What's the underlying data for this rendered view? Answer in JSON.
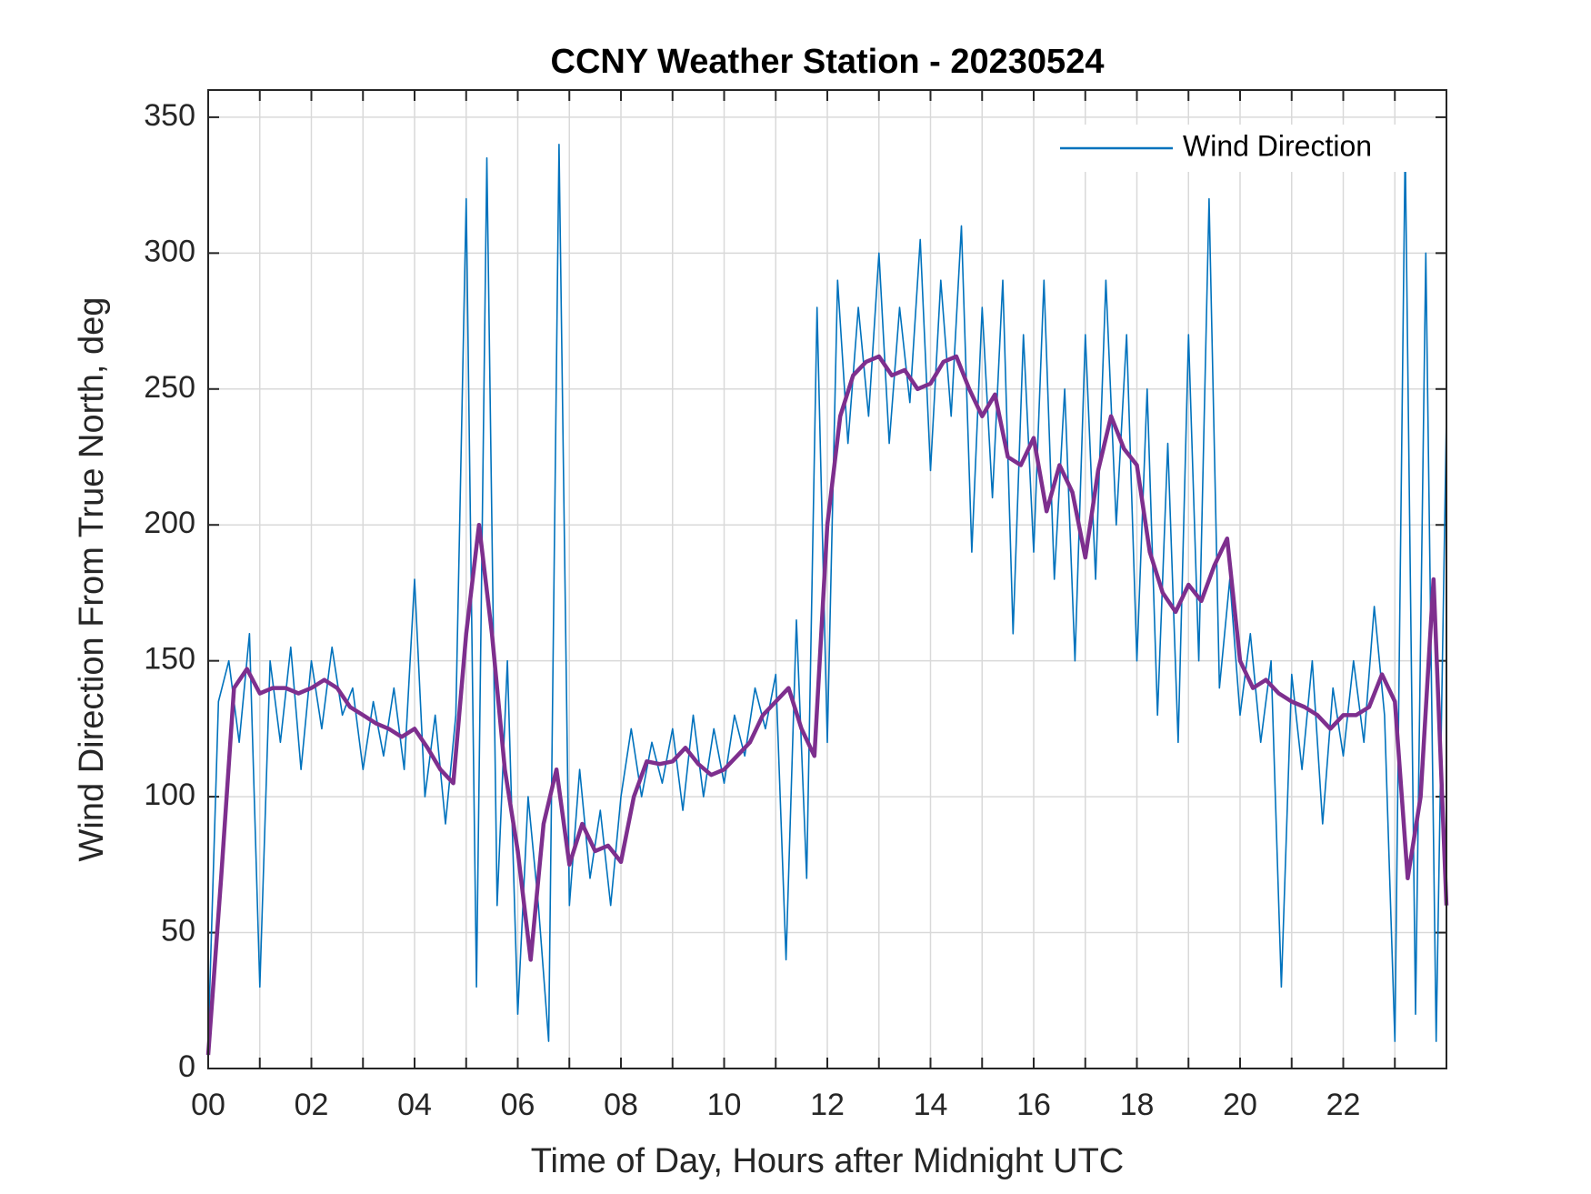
{
  "chart_data": {
    "type": "line",
    "title": "CCNY Weather Station - 20230524",
    "xlabel": "Time of Day, Hours after Midnight UTC",
    "ylabel": "Wind Direction From True North, deg",
    "xlim": [
      0,
      24
    ],
    "ylim": [
      0,
      360
    ],
    "xticks": [
      {
        "value": 0,
        "label": "00"
      },
      {
        "value": 2,
        "label": "02"
      },
      {
        "value": 4,
        "label": "04"
      },
      {
        "value": 6,
        "label": "06"
      },
      {
        "value": 8,
        "label": "08"
      },
      {
        "value": 10,
        "label": "10"
      },
      {
        "value": 12,
        "label": "12"
      },
      {
        "value": 14,
        "label": "14"
      },
      {
        "value": 16,
        "label": "16"
      },
      {
        "value": 18,
        "label": "18"
      },
      {
        "value": 20,
        "label": "20"
      },
      {
        "value": 22,
        "label": "22"
      }
    ],
    "xminorticks": [
      1,
      3,
      5,
      7,
      9,
      11,
      13,
      15,
      17,
      19,
      21,
      23
    ],
    "yticks": [
      0,
      50,
      100,
      150,
      200,
      250,
      300,
      350
    ],
    "grid": true,
    "legend": "upper right",
    "series": [
      {
        "name": "Wind Direction",
        "color": "#0072BD",
        "x": [
          0,
          0.2,
          0.4,
          0.6,
          0.8,
          1,
          1.2,
          1.4,
          1.6,
          1.8,
          2,
          2.2,
          2.4,
          2.6,
          2.8,
          3,
          3.2,
          3.4,
          3.6,
          3.8,
          4,
          4.2,
          4.4,
          4.6,
          4.8,
          5,
          5.2,
          5.4,
          5.6,
          5.8,
          6,
          6.2,
          6.4,
          6.6,
          6.8,
          7,
          7.2,
          7.4,
          7.6,
          7.8,
          8,
          8.2,
          8.4,
          8.6,
          8.8,
          9,
          9.2,
          9.4,
          9.6,
          9.8,
          10,
          10.2,
          10.4,
          10.6,
          10.8,
          11,
          11.2,
          11.4,
          11.6,
          11.8,
          12,
          12.2,
          12.4,
          12.6,
          12.8,
          13,
          13.2,
          13.4,
          13.6,
          13.8,
          14,
          14.2,
          14.4,
          14.6,
          14.8,
          15,
          15.2,
          15.4,
          15.6,
          15.8,
          16,
          16.2,
          16.4,
          16.6,
          16.8,
          17,
          17.2,
          17.4,
          17.6,
          17.8,
          18,
          18.2,
          18.4,
          18.6,
          18.8,
          19,
          19.2,
          19.4,
          19.6,
          19.8,
          20,
          20.2,
          20.4,
          20.6,
          20.8,
          21,
          21.2,
          21.4,
          21.6,
          21.8,
          22,
          22.2,
          22.4,
          22.6,
          22.8,
          23,
          23.2,
          23.4,
          23.6,
          23.8,
          24
        ],
        "values": [
          10,
          135,
          150,
          120,
          160,
          30,
          150,
          120,
          155,
          110,
          150,
          125,
          155,
          130,
          140,
          110,
          135,
          115,
          140,
          110,
          180,
          100,
          130,
          90,
          130,
          320,
          30,
          335,
          60,
          150,
          20,
          100,
          60,
          10,
          340,
          60,
          110,
          70,
          95,
          60,
          100,
          125,
          100,
          120,
          105,
          125,
          95,
          130,
          100,
          125,
          105,
          130,
          115,
          140,
          125,
          145,
          40,
          165,
          70,
          280,
          120,
          290,
          230,
          280,
          240,
          300,
          230,
          280,
          245,
          305,
          220,
          290,
          240,
          310,
          190,
          280,
          210,
          290,
          160,
          270,
          190,
          290,
          180,
          250,
          150,
          270,
          180,
          290,
          200,
          270,
          150,
          250,
          130,
          230,
          120,
          270,
          150,
          320,
          140,
          180,
          130,
          160,
          120,
          150,
          30,
          145,
          110,
          150,
          90,
          140,
          115,
          150,
          120,
          170,
          130,
          10,
          340,
          20,
          300,
          10,
          240
        ]
      },
      {
        "color": "#7E2F8E",
        "x": [
          0,
          0.25,
          0.5,
          0.75,
          1,
          1.25,
          1.5,
          1.75,
          2,
          2.25,
          2.5,
          2.75,
          3,
          3.25,
          3.5,
          3.75,
          4,
          4.25,
          4.5,
          4.75,
          5,
          5.25,
          5.5,
          5.75,
          6,
          6.25,
          6.5,
          6.75,
          7,
          7.25,
          7.5,
          7.75,
          8,
          8.25,
          8.5,
          8.75,
          9,
          9.25,
          9.5,
          9.75,
          10,
          10.25,
          10.5,
          10.75,
          11,
          11.25,
          11.5,
          11.75,
          12,
          12.25,
          12.5,
          12.75,
          13,
          13.25,
          13.5,
          13.75,
          14,
          14.25,
          14.5,
          14.75,
          15,
          15.25,
          15.5,
          15.75,
          16,
          16.25,
          16.5,
          16.75,
          17,
          17.25,
          17.5,
          17.75,
          18,
          18.25,
          18.5,
          18.75,
          19,
          19.25,
          19.5,
          19.75,
          20,
          20.25,
          20.5,
          20.75,
          21,
          21.25,
          21.5,
          21.75,
          22,
          22.25,
          22.5,
          22.75,
          23,
          23.25,
          23.5,
          23.75,
          24
        ],
        "values": [
          5,
          70,
          140,
          147,
          138,
          140,
          140,
          138,
          140,
          143,
          140,
          133,
          130,
          127,
          125,
          122,
          125,
          118,
          110,
          105,
          160,
          200,
          160,
          110,
          80,
          40,
          90,
          110,
          75,
          90,
          80,
          82,
          76,
          100,
          113,
          112,
          113,
          118,
          112,
          108,
          110,
          115,
          120,
          130,
          135,
          140,
          125,
          115,
          200,
          240,
          255,
          260,
          262,
          255,
          257,
          250,
          252,
          260,
          262,
          250,
          240,
          248,
          225,
          222,
          232,
          205,
          222,
          212,
          188,
          220,
          240,
          228,
          222,
          190,
          175,
          168,
          178,
          172,
          185,
          195,
          150,
          140,
          143,
          138,
          135,
          133,
          130,
          125,
          130,
          130,
          133,
          145,
          135,
          70,
          100,
          180,
          60
        ]
      }
    ]
  }
}
